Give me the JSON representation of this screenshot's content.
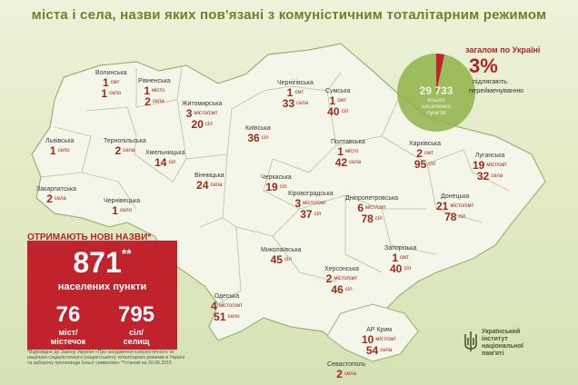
{
  "title": "міста і села, назви яких пов'язані з комуністичним тоталітарним режимом",
  "summary": {
    "total_label": "загалом по Україні",
    "percent": "3%",
    "percent_note_1": "підлягають",
    "percent_note_2": "перейменуванню",
    "total_count": "29 733",
    "total_note_1": "всього",
    "total_note_2": "населених",
    "total_note_3": "пунктів"
  },
  "rename_box": {
    "heading": "ОТРИМАЮТЬ НОВІ НАЗВИ*",
    "big_number": "871",
    "big_mark": "**",
    "big_label": "населених пункти",
    "cities_number": "76",
    "cities_label_1": "міст/",
    "cities_label_2": "містечок",
    "villages_number": "795",
    "villages_label_1": "сіл/",
    "villages_label_2": "селищ"
  },
  "footnote": "*Відповідно до Закону України «Про засудження комуністичного та націонал-соціалістичного (нацистського) тоталітарних режимів в Україні та заборону пропаганди їхньої символіки» **станом на 10.06.2015",
  "institute": {
    "line1": "Український",
    "line2": "інститут",
    "line3": "національної",
    "line4": "пам'яті"
  },
  "regions": [
    {
      "name": "Волинська",
      "lines": [
        {
          "n": "1",
          "u": "смт"
        },
        {
          "n": "1",
          "u": "село"
        }
      ]
    },
    {
      "name": "Рівненська",
      "lines": [
        {
          "n": "1",
          "u": "місто"
        },
        {
          "n": "2",
          "u": "села"
        }
      ]
    },
    {
      "name": "Житомирська",
      "lines": [
        {
          "n": "3",
          "u": "місто/смт"
        },
        {
          "n": "20",
          "u": "сіл"
        }
      ]
    },
    {
      "name": "Чернігівська",
      "lines": [
        {
          "n": "1",
          "u": "смт"
        },
        {
          "n": "33",
          "u": "села"
        }
      ]
    },
    {
      "name": "Сумська",
      "lines": [
        {
          "n": "1",
          "u": "смт"
        },
        {
          "n": "40",
          "u": "сіл"
        }
      ]
    },
    {
      "name": "Львівська",
      "lines": [
        {
          "n": "1",
          "u": "село"
        }
      ]
    },
    {
      "name": "Тернопільська",
      "lines": [
        {
          "n": "2",
          "u": "села"
        }
      ]
    },
    {
      "name": "Хмельницька",
      "lines": [
        {
          "n": "14",
          "u": "сіл"
        }
      ]
    },
    {
      "name": "Київська",
      "lines": [
        {
          "n": "36",
          "u": "сіл"
        }
      ]
    },
    {
      "name": "Полтавська",
      "lines": [
        {
          "n": "1",
          "u": "місто"
        },
        {
          "n": "42",
          "u": "села"
        }
      ]
    },
    {
      "name": "Харківська",
      "lines": [
        {
          "n": "2",
          "u": "смт"
        },
        {
          "n": "95",
          "u": "сіл"
        }
      ]
    },
    {
      "name": "Луганська",
      "lines": [
        {
          "n": "19",
          "u": "міст/смт"
        },
        {
          "n": "32",
          "u": "села"
        }
      ]
    },
    {
      "name": "Закарпатська",
      "lines": [
        {
          "n": "2",
          "u": "села"
        }
      ]
    },
    {
      "name": "Чернівецька",
      "lines": [
        {
          "n": "1",
          "u": "село"
        }
      ]
    },
    {
      "name": "Вінницька",
      "lines": [
        {
          "n": "24",
          "u": "села"
        }
      ]
    },
    {
      "name": "Черкаська",
      "lines": [
        {
          "n": "19",
          "u": "сіл"
        }
      ]
    },
    {
      "name": "Кіровоградська",
      "lines": [
        {
          "n": "3",
          "u": "місто/смт"
        },
        {
          "n": "37",
          "u": "сіл"
        }
      ]
    },
    {
      "name": "Дніпропетровська",
      "lines": [
        {
          "n": "6",
          "u": "міст/смт"
        },
        {
          "n": "78",
          "u": "сіл"
        }
      ]
    },
    {
      "name": "Донецька",
      "lines": [
        {
          "n": "21",
          "u": "місто/смт"
        },
        {
          "n": "78",
          "u": "сіл"
        }
      ]
    },
    {
      "name": "Миколаївська",
      "lines": [
        {
          "n": "45",
          "u": "сіл"
        }
      ]
    },
    {
      "name": "Запорізька",
      "lines": [
        {
          "n": "1",
          "u": "смт"
        },
        {
          "n": "40",
          "u": "сіл"
        }
      ]
    },
    {
      "name": "Херсонська",
      "lines": [
        {
          "n": "2",
          "u": "місто/смт"
        },
        {
          "n": "46",
          "u": "сіл"
        }
      ]
    },
    {
      "name": "Одеська",
      "lines": [
        {
          "n": "4",
          "u": "місто/смт"
        },
        {
          "n": "51",
          "u": "село"
        }
      ]
    },
    {
      "name": "АР Крим",
      "lines": [
        {
          "n": "10",
          "u": "міст/смт"
        },
        {
          "n": "54",
          "u": "села"
        }
      ]
    },
    {
      "name": "Севастополь",
      "lines": [
        {
          "n": "2",
          "u": "села"
        }
      ]
    }
  ]
}
